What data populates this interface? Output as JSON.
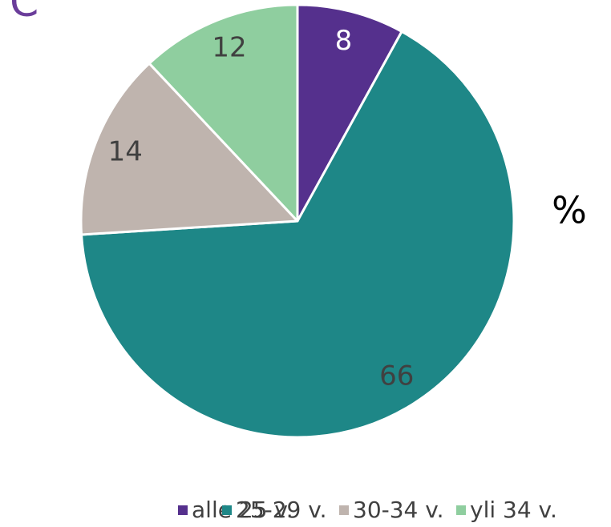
{
  "chart_data": {
    "type": "pie",
    "title": "C",
    "unit_label": "%",
    "categories": [
      "alle 25 v.",
      "25-29 v.",
      "30-34 v.",
      "yli 34 v."
    ],
    "values": [
      8,
      66,
      14,
      12
    ],
    "colors": [
      "#55308d",
      "#1e8787",
      "#bfb4ae",
      "#8fce9f"
    ],
    "legend": "bottom"
  }
}
